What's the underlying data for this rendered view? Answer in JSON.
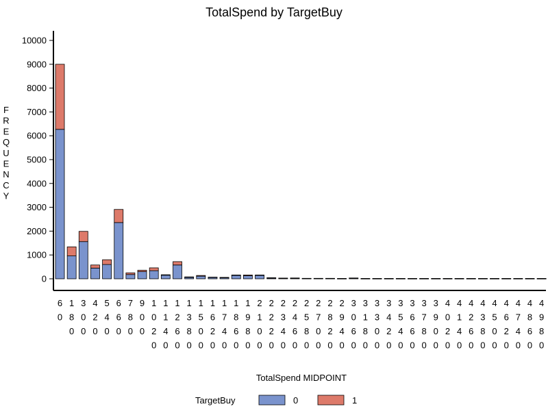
{
  "chart_data": {
    "type": "bar",
    "stacked": true,
    "title": "TotalSpend by TargetBuy",
    "xlabel": "TotalSpend MIDPOINT",
    "ylabel": "FREQUENCY",
    "ylim": [
      0,
      10000
    ],
    "yticks": [
      0,
      1000,
      2000,
      3000,
      4000,
      5000,
      6000,
      7000,
      8000,
      9000,
      10000
    ],
    "grid": false,
    "legend": {
      "title": "TargetBuy",
      "position": "bottom"
    },
    "categories": [
      "60",
      "180",
      "300",
      "420",
      "540",
      "660",
      "780",
      "900",
      "1020",
      "1140",
      "1260",
      "1380",
      "1500",
      "1620",
      "1740",
      "1860",
      "1980",
      "2100",
      "2220",
      "2340",
      "2460",
      "2580",
      "2700",
      "2820",
      "2940",
      "3060",
      "3180",
      "3300",
      "3420",
      "3540",
      "3660",
      "3780",
      "3900",
      "4020",
      "4140",
      "4260",
      "4380",
      "4500",
      "4620",
      "4740",
      "4860",
      "4980"
    ],
    "series": [
      {
        "name": "0",
        "color": "#7a93cd",
        "values": [
          6270,
          960,
          1560,
          450,
          600,
          2360,
          180,
          300,
          340,
          150,
          580,
          60,
          110,
          60,
          50,
          140,
          130,
          140,
          35,
          25,
          25,
          15,
          15,
          15,
          10,
          25,
          10,
          10,
          10,
          10,
          10,
          10,
          10,
          10,
          10,
          10,
          10,
          10,
          10,
          10,
          10,
          10
        ]
      },
      {
        "name": "1",
        "color": "#dd7a6a",
        "values": [
          2730,
          380,
          430,
          130,
          200,
          550,
          70,
          60,
          120,
          20,
          140,
          20,
          30,
          10,
          10,
          20,
          30,
          20,
          10,
          5,
          10,
          5,
          5,
          5,
          5,
          10,
          5,
          5,
          5,
          5,
          5,
          5,
          5,
          5,
          5,
          5,
          5,
          5,
          5,
          5,
          5,
          5
        ]
      }
    ]
  }
}
